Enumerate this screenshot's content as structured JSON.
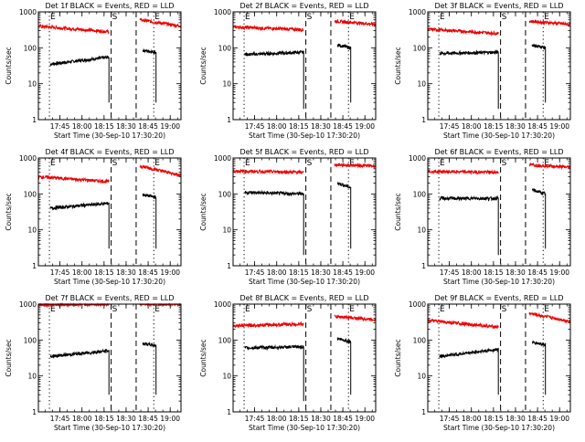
{
  "chart_data": {
    "type": "line",
    "shared": {
      "xlabel": "Start Time (30-Sep-10 17:30:20)",
      "ylabel": "Counts/sec",
      "x_unit": "minutes since 17:30:20",
      "xlim": [
        0,
        97
      ],
      "ylim": [
        1,
        1000
      ],
      "yscale": "log",
      "xticks": [
        {
          "value": 14.67,
          "label": "17:45"
        },
        {
          "value": 29.67,
          "label": "18:00"
        },
        {
          "value": 44.67,
          "label": "18:15"
        },
        {
          "value": 59.67,
          "label": "18:30"
        },
        {
          "value": 74.67,
          "label": "18:45"
        },
        {
          "value": 89.67,
          "label": "19:00"
        }
      ],
      "yticks": [
        {
          "value": 1,
          "label": "1"
        },
        {
          "value": 10,
          "label": "10"
        },
        {
          "value": 100,
          "label": "100"
        },
        {
          "value": 1000,
          "label": "1000"
        }
      ],
      "markers": [
        {
          "x": 7.5,
          "label": "E",
          "style": "dotted"
        },
        {
          "x": 49.5,
          "label": "S",
          "style": "dashed"
        },
        {
          "x": 66.5,
          "label": "",
          "style": "dashed"
        },
        {
          "x": 78.5,
          "label": "E",
          "style": "dotted"
        }
      ],
      "series_colors": {
        "events": "#000000",
        "lld": "#ee0000"
      },
      "legend": "in title"
    },
    "panels": [
      {
        "title": "Det 1f BLACK = Events, RED = LLD",
        "series": [
          {
            "name": "Events",
            "segments": [
              {
                "x0": 8,
                "x1": 48,
                "y0": 35,
                "y1": 55,
                "end_drop": 3
              },
              {
                "x0": 71,
                "x1": 80,
                "y0": 85,
                "y1": 75,
                "end_drop": 3
              }
            ]
          },
          {
            "name": "LLD",
            "segments": [
              {
                "x0": 0,
                "x1": 48,
                "y0": 400,
                "y1": 280,
                "end_drop": null
              },
              {
                "x0": 69,
                "x1": 97,
                "y0": 600,
                "y1": 400,
                "end_drop": null
              }
            ]
          }
        ]
      },
      {
        "title": "Det 2f BLACK = Events, RED = LLD",
        "series": [
          {
            "name": "Events",
            "segments": [
              {
                "x0": 8,
                "x1": 48,
                "y0": 65,
                "y1": 75,
                "end_drop": 2
              },
              {
                "x0": 71,
                "x1": 80,
                "y0": 120,
                "y1": 100,
                "end_drop": 3
              }
            ]
          },
          {
            "name": "LLD",
            "segments": [
              {
                "x0": 0,
                "x1": 48,
                "y0": 380,
                "y1": 320,
                "end_drop": null
              },
              {
                "x0": 69,
                "x1": 97,
                "y0": 550,
                "y1": 450,
                "end_drop": null
              }
            ]
          }
        ]
      },
      {
        "title": "Det 3f BLACK = Events, RED = LLD",
        "series": [
          {
            "name": "Events",
            "segments": [
              {
                "x0": 8,
                "x1": 48,
                "y0": 70,
                "y1": 75,
                "end_drop": 2
              },
              {
                "x0": 71,
                "x1": 80,
                "y0": 120,
                "y1": 100,
                "end_drop": 3
              }
            ]
          },
          {
            "name": "LLD",
            "segments": [
              {
                "x0": 0,
                "x1": 48,
                "y0": 330,
                "y1": 250,
                "end_drop": null
              },
              {
                "x0": 69,
                "x1": 97,
                "y0": 550,
                "y1": 450,
                "end_drop": null
              }
            ]
          }
        ]
      },
      {
        "title": "Det 4f BLACK = Events, RED = LLD",
        "series": [
          {
            "name": "Events",
            "segments": [
              {
                "x0": 8,
                "x1": 48,
                "y0": 40,
                "y1": 55,
                "end_drop": 3
              },
              {
                "x0": 71,
                "x1": 80,
                "y0": 95,
                "y1": 80,
                "end_drop": 3
              }
            ]
          },
          {
            "name": "LLD",
            "segments": [
              {
                "x0": 0,
                "x1": 48,
                "y0": 300,
                "y1": 220,
                "end_drop": null
              },
              {
                "x0": 69,
                "x1": 97,
                "y0": 600,
                "y1": 330,
                "end_drop": null
              }
            ]
          }
        ]
      },
      {
        "title": "Det 5f BLACK = Events, RED = LLD",
        "series": [
          {
            "name": "Events",
            "segments": [
              {
                "x0": 8,
                "x1": 48,
                "y0": 110,
                "y1": 100,
                "end_drop": 2
              },
              {
                "x0": 71,
                "x1": 80,
                "y0": 200,
                "y1": 150,
                "end_drop": 3
              }
            ]
          },
          {
            "name": "LLD",
            "segments": [
              {
                "x0": 0,
                "x1": 48,
                "y0": 430,
                "y1": 400,
                "end_drop": null
              },
              {
                "x0": 69,
                "x1": 97,
                "y0": 650,
                "y1": 600,
                "end_drop": null
              }
            ]
          }
        ]
      },
      {
        "title": "Det 6f BLACK = Events, RED = LLD",
        "series": [
          {
            "name": "Events",
            "segments": [
              {
                "x0": 8,
                "x1": 48,
                "y0": 75,
                "y1": 75,
                "end_drop": 2
              },
              {
                "x0": 71,
                "x1": 80,
                "y0": 130,
                "y1": 100,
                "end_drop": 3
              }
            ]
          },
          {
            "name": "LLD",
            "segments": [
              {
                "x0": 0,
                "x1": 48,
                "y0": 420,
                "y1": 400,
                "end_drop": null
              },
              {
                "x0": 69,
                "x1": 97,
                "y0": 650,
                "y1": 550,
                "end_drop": null
              }
            ]
          }
        ]
      },
      {
        "title": "Det 7f BLACK = Events, RED = LLD",
        "series": [
          {
            "name": "Events",
            "segments": [
              {
                "x0": 8,
                "x1": 48,
                "y0": 35,
                "y1": 50,
                "end_drop": 3
              },
              {
                "x0": 71,
                "x1": 80,
                "y0": 80,
                "y1": 70,
                "end_drop": 3
              }
            ]
          },
          {
            "name": "LLD",
            "segments": [
              {
                "x0": 0,
                "x1": 48,
                "y0": 950,
                "y1": 1000,
                "end_drop": null
              },
              {
                "x0": 69,
                "x1": 97,
                "y0": 1000,
                "y1": 1000,
                "end_drop": null
              }
            ]
          }
        ]
      },
      {
        "title": "Det 8f BLACK = Events, RED = LLD",
        "series": [
          {
            "name": "Events",
            "segments": [
              {
                "x0": 8,
                "x1": 48,
                "y0": 60,
                "y1": 65,
                "end_drop": 2
              },
              {
                "x0": 71,
                "x1": 80,
                "y0": 110,
                "y1": 90,
                "end_drop": 3
              }
            ]
          },
          {
            "name": "LLD",
            "segments": [
              {
                "x0": 0,
                "x1": 48,
                "y0": 250,
                "y1": 280,
                "end_drop": null
              },
              {
                "x0": 69,
                "x1": 97,
                "y0": 450,
                "y1": 370,
                "end_drop": null
              }
            ]
          }
        ]
      },
      {
        "title": "Det 9f BLACK = Events, RED = LLD",
        "series": [
          {
            "name": "Events",
            "segments": [
              {
                "x0": 8,
                "x1": 48,
                "y0": 35,
                "y1": 55,
                "end_drop": 3
              },
              {
                "x0": 71,
                "x1": 80,
                "y0": 85,
                "y1": 75,
                "end_drop": 3
              }
            ]
          },
          {
            "name": "LLD",
            "segments": [
              {
                "x0": 0,
                "x1": 48,
                "y0": 350,
                "y1": 230,
                "end_drop": null
              },
              {
                "x0": 69,
                "x1": 97,
                "y0": 550,
                "y1": 330,
                "end_drop": null
              }
            ]
          }
        ]
      }
    ]
  }
}
